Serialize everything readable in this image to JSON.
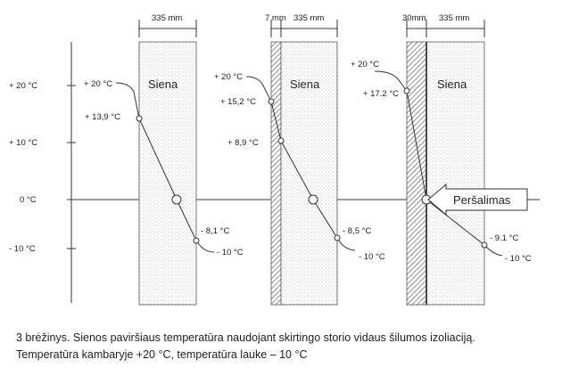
{
  "y_axis": {
    "ticks": [
      "+ 20 °C",
      "+ 10 °C",
      "0 °C",
      "- 10 °C"
    ]
  },
  "panels": [
    {
      "dim_labels": [
        "335 mm"
      ],
      "wall_label": "Siena",
      "inside_labels": [
        "+ 20 °C",
        "+ 13,9 °C"
      ],
      "outside_labels": [
        "- 8,1 °C",
        "- 10 °C"
      ]
    },
    {
      "dim_labels": [
        "7 mm",
        "335 mm"
      ],
      "wall_label": "Siena",
      "inside_labels": [
        "+ 20 °C",
        "+ 15,2 °C",
        "+ 8,9 °C"
      ],
      "outside_labels": [
        "- 8,5 °C",
        "- 10 °C"
      ]
    },
    {
      "dim_labels": [
        "30mm",
        "335 mm"
      ],
      "wall_label": "Siena",
      "inside_labels": [
        "+ 20 °C",
        "+ 17.2 °C"
      ],
      "outside_labels": [
        "- 9.1 °C",
        "- 10 °C"
      ],
      "arrow_label": "Peršalimas"
    }
  ],
  "caption": {
    "line1": "3 brėžinys. Sienos paviršiaus temperatūra naudojant skirtingo storio vidaus šilumos izoliaciją.",
    "line2": "Temperatūra kambaryje  +20 °C, temperatūra lauke  – 10 °C"
  },
  "colors": {
    "line": "#333333",
    "wall_fill": "#ffffff",
    "dots": "#9a9a9a",
    "hatch": "#555555"
  }
}
